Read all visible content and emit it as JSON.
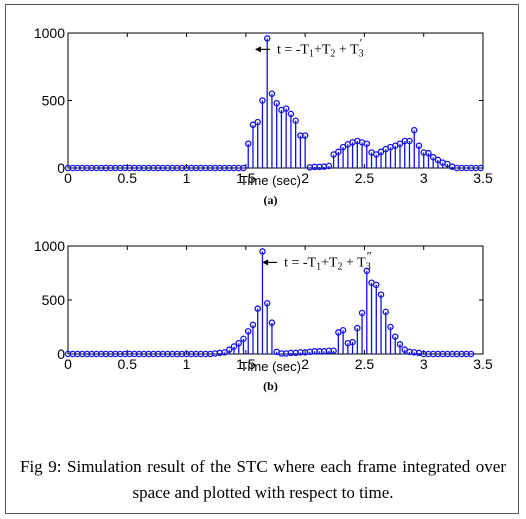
{
  "figure_caption": "Fig 9: Simulation result of the STC where each frame integrated over space and plotted with respect to time.",
  "chart_data": [
    {
      "type": "stem",
      "panel_label": "(a)",
      "xlabel": "Time (sec)",
      "ylabel": "",
      "xlim": [
        0,
        3.5
      ],
      "ylim": [
        0,
        1000
      ],
      "xticks": [
        "0",
        "0.5",
        "1",
        "1.5",
        "2",
        "2.5",
        "3",
        "3.5"
      ],
      "yticks": [
        "0",
        "500",
        "1000"
      ],
      "x_start": 0,
      "x_step": 0.04,
      "values": [
        0,
        0,
        0,
        0,
        0,
        0,
        0,
        0,
        0,
        0,
        0,
        0,
        0,
        0,
        0,
        0,
        0,
        0,
        0,
        0,
        0,
        0,
        0,
        0,
        0,
        0,
        0,
        0,
        0,
        0,
        0,
        0,
        0,
        0,
        0,
        0,
        0,
        0,
        180,
        320,
        340,
        500,
        960,
        550,
        480,
        430,
        440,
        400,
        350,
        240,
        240,
        5,
        8,
        8,
        10,
        15,
        100,
        120,
        155,
        175,
        190,
        200,
        190,
        180,
        115,
        100,
        120,
        140,
        155,
        165,
        180,
        200,
        200,
        280,
        165,
        115,
        110,
        80,
        60,
        40,
        30,
        10,
        0,
        0,
        0,
        0,
        0,
        0,
        0,
        0,
        0,
        0,
        0,
        0,
        0,
        0,
        0,
        0,
        0,
        0,
        0,
        0,
        0,
        0,
        0
      ],
      "color": "#1010ee",
      "annotation": {
        "text_prefix": "t = -T",
        "sub1": "1",
        "mid1": "+T",
        "sub2": "2",
        "mid2": " + T",
        "sub3": "3",
        "prime": "′",
        "x": 1.56,
        "y": 960
      }
    },
    {
      "type": "stem",
      "panel_label": "(b)",
      "xlabel": "Time (sec)",
      "ylabel": "",
      "xlim": [
        0,
        3.5
      ],
      "ylim": [
        0,
        1000
      ],
      "xticks": [
        "0",
        "0.5",
        "1",
        "1.5",
        "2",
        "2.5",
        "3",
        "3.5"
      ],
      "yticks": [
        "0",
        "500",
        "1000"
      ],
      "x_start": 0,
      "x_step": 0.04,
      "values": [
        0,
        0,
        0,
        0,
        0,
        0,
        0,
        0,
        0,
        0,
        0,
        0,
        0,
        0,
        0,
        0,
        0,
        0,
        0,
        0,
        0,
        0,
        0,
        0,
        0,
        0,
        0,
        0,
        0,
        0,
        0,
        5,
        10,
        15,
        40,
        70,
        100,
        140,
        210,
        270,
        420,
        950,
        470,
        290,
        20,
        5,
        5,
        10,
        10,
        15,
        15,
        20,
        25,
        25,
        25,
        30,
        30,
        200,
        220,
        100,
        110,
        240,
        380,
        770,
        660,
        640,
        550,
        390,
        250,
        160,
        90,
        40,
        20,
        15,
        10,
        0,
        0,
        0,
        0,
        0,
        0,
        0,
        0,
        0,
        0,
        0
      ],
      "x_start_b": 0,
      "color": "#1010ee",
      "annotation": {
        "text_prefix": "t = -T",
        "sub1": "1",
        "mid1": "+T",
        "sub2": "2",
        "mid2": " + T",
        "sub3": "3",
        "prime": "″",
        "x": 1.62,
        "y": 950
      }
    }
  ]
}
